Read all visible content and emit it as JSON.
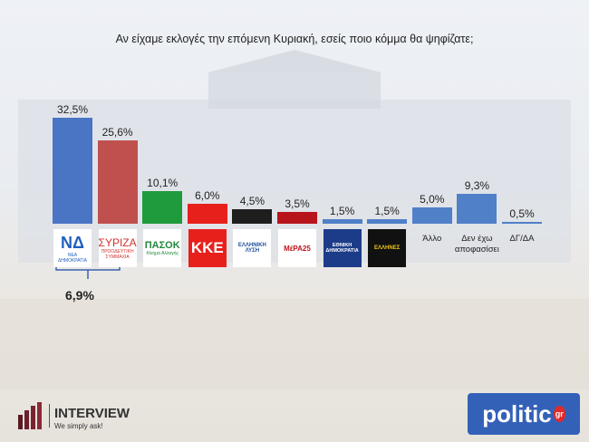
{
  "chart_data": {
    "type": "bar",
    "title": "Αν είχαμε εκλογές την επόμενη Κυριακή, εσείς ποιο κόμμα θα ψηφίζατε;",
    "categories": [
      "ΝΔ",
      "ΣΥΡΙΖΑ",
      "ΠΑΣΟΚ",
      "ΚΚΕ",
      "ΕΛΛΗΝΙΚΗ ΛΥΣΗ",
      "ΜέΡΑ25",
      "ΕΘΝΙΚΗ ΔΗΜΟΚΡΑΤΙΑ",
      "ΕΛΛΗΝΕΣ",
      "Άλλο",
      "Δεν έχω αποφασίσει",
      "ΔΓ/ΔΑ"
    ],
    "logo_subtexts": [
      "ΝΕΑ ΔΗΜΟΚΡΑΤΙΑ",
      "ΠΡΟΟΔΕΥΤΙΚΗ ΣΥΜΜΑΧΙΑ",
      "Κίνημα Αλλαγής",
      null,
      null,
      null,
      null,
      null,
      null,
      null,
      null
    ],
    "values": [
      32.5,
      25.6,
      10.1,
      6.0,
      4.5,
      3.5,
      1.5,
      1.5,
      5.0,
      9.3,
      0.5
    ],
    "value_labels": [
      "32,5%",
      "25,6%",
      "10,1%",
      "6,0%",
      "4,5%",
      "3,5%",
      "1,5%",
      "1,5%",
      "5,0%",
      "9,3%",
      "0,5%"
    ],
    "colors": [
      "#4a74c4",
      "#c0504d",
      "#1f9a3c",
      "#e8201c",
      "#1e1e1e",
      "#b8141c",
      "#4f80c8",
      "#4f80c8",
      "#4f80c8",
      "#4f80c8",
      "#4f80c8"
    ],
    "annotation": "6,9%"
  },
  "footer": {
    "brand": "INTERVIEW",
    "slogan": "We simply ask!",
    "partner": "politic",
    "partner_suffix": "gr"
  }
}
